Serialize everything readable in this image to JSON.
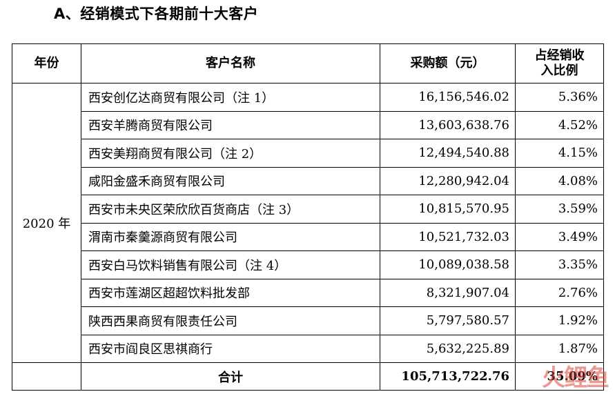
{
  "heading": "A、经销模式下各期前十大客户",
  "table": {
    "headers": {
      "year": "年份",
      "customer": "客户名称",
      "amount": "采购额（元）",
      "ratio_line1": "占经销收",
      "ratio_line2": "入比例"
    },
    "year": "2020 年",
    "rows": [
      {
        "name": "西安创亿达商贸有限公司（注 1）",
        "amount": "16,156,546.02",
        "ratio": "5.36%"
      },
      {
        "name": "西安羊腾商贸有限公司",
        "amount": "13,603,638.76",
        "ratio": "4.52%"
      },
      {
        "name": "西安美翔商贸有限公司（注 2）",
        "amount": "12,494,540.88",
        "ratio": "4.15%"
      },
      {
        "name": "咸阳金盛禾商贸有限公司",
        "amount": "12,280,942.04",
        "ratio": "4.08%"
      },
      {
        "name": "西安市未央区荣欣欣百货商店（注 3）",
        "amount": "10,815,570.95",
        "ratio": "3.59%"
      },
      {
        "name": "渭南市秦羹源商贸有限公司",
        "amount": "10,521,732.03",
        "ratio": "3.49%"
      },
      {
        "name": "西安白马饮料销售有限公司（注 4）",
        "amount": "10,089,038.58",
        "ratio": "3.35%"
      },
      {
        "name": "西安市莲湖区超超饮料批发部",
        "amount": "8,321,907.04",
        "ratio": "2.76%"
      },
      {
        "name": "陕西西果商贸有限责任公司",
        "amount": "5,797,580.57",
        "ratio": "1.92%"
      },
      {
        "name": "西安市阎良区思祺商行",
        "amount": "5,632,225.89",
        "ratio": "1.87%"
      }
    ],
    "total": {
      "label": "合计",
      "amount": "105,713,722.76",
      "ratio": "35.09%"
    }
  },
  "watermark": "火鲤鱼"
}
